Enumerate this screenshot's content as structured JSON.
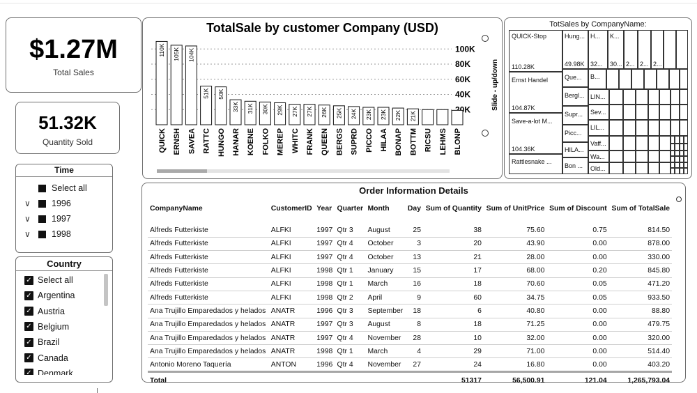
{
  "kpis": {
    "total_sales": {
      "value": "$1.27M",
      "label": "Total Sales"
    },
    "quantity_sold": {
      "value": "51.32K",
      "label": "Quantity Sold"
    }
  },
  "time_slicer": {
    "title": "Time",
    "items": [
      {
        "label": "Select all",
        "expandable": false
      },
      {
        "label": "1996",
        "expandable": true
      },
      {
        "label": "1997",
        "expandable": true
      },
      {
        "label": "1998",
        "expandable": true
      }
    ]
  },
  "country_slicer": {
    "title": "Country",
    "items": [
      "Select all",
      "Argentina",
      "Austria",
      "Belgium",
      "Brazil",
      "Canada",
      "Denmark"
    ]
  },
  "bar_chart": {
    "side_label": "Slide - up/down"
  },
  "chart_data": {
    "type": "bar",
    "title": "TotalSale by customer Company (USD)",
    "categories": [
      "QUICK",
      "ERNSH",
      "SAVEA",
      "RATTC",
      "HUNGO",
      "HANAR",
      "KOENE",
      "FOLKO",
      "MEREP",
      "WHITC",
      "FRANK",
      "QUEEN",
      "BERGS",
      "SUPRD",
      "PICCO",
      "HILAA",
      "BONAP",
      "BOTTM",
      "RICSU",
      "LEHMS",
      "BLONP"
    ],
    "values": [
      110,
      105,
      104,
      51,
      50,
      33,
      31,
      30,
      29,
      27,
      27,
      26,
      25,
      24,
      23,
      23,
      22,
      21,
      20,
      20,
      19
    ],
    "value_labels": [
      "110K",
      "105K",
      "104K",
      "51K",
      "50K",
      "33K",
      "31K",
      "30K",
      "29K",
      "27K",
      "27K",
      "26K",
      "25K",
      "24K",
      "23K",
      "23K",
      "22K",
      "21K",
      "",
      "",
      ""
    ],
    "y_ticks": [
      "20K",
      "40K",
      "60K",
      "80K",
      "100K"
    ],
    "ylim": [
      0,
      115
    ],
    "grid": true,
    "axis_position": "right"
  },
  "treemap": {
    "title": "TotSales by CompanyName:",
    "labels": [
      "QUICK-Stop",
      "110.28K",
      "Ernst Handel",
      "104.87K",
      "Save-a-lot M...",
      "104.36K",
      "Rattlesnake ...",
      "Hung...",
      "49.98K",
      "Que...",
      "Bergl...",
      "Supr...",
      "Picc...",
      "HILA...",
      "Bon ...",
      "H...",
      "32...",
      "K...",
      "30...",
      "2...",
      "2...",
      "2...",
      "B...",
      "LIN...",
      "Sev...",
      "LIL...",
      "Vaff...",
      "Wa...",
      "Old..."
    ]
  },
  "order_table": {
    "title": "Order Information Details",
    "columns": [
      "CompanyName",
      "CustomerID",
      "Year",
      "Quarter",
      "Month",
      "Day",
      "Sum of Quantity",
      "Sum of UnitPrice",
      "Sum of Discount",
      "Sum of TotalSale"
    ],
    "rows": [
      [
        "Alfreds Futterkiste",
        "ALFKI",
        "1997",
        "Qtr 3",
        "August",
        "25",
        "38",
        "75.60",
        "0.75",
        "814.50"
      ],
      [
        "Alfreds Futterkiste",
        "ALFKI",
        "1997",
        "Qtr 4",
        "October",
        "3",
        "20",
        "43.90",
        "0.00",
        "878.00"
      ],
      [
        "Alfreds Futterkiste",
        "ALFKI",
        "1997",
        "Qtr 4",
        "October",
        "13",
        "21",
        "28.00",
        "0.00",
        "330.00"
      ],
      [
        "Alfreds Futterkiste",
        "ALFKI",
        "1998",
        "Qtr 1",
        "January",
        "15",
        "17",
        "68.00",
        "0.20",
        "845.80"
      ],
      [
        "Alfreds Futterkiste",
        "ALFKI",
        "1998",
        "Qtr 1",
        "March",
        "16",
        "18",
        "70.60",
        "0.05",
        "471.20"
      ],
      [
        "Alfreds Futterkiste",
        "ALFKI",
        "1998",
        "Qtr 2",
        "April",
        "9",
        "60",
        "34.75",
        "0.05",
        "933.50"
      ],
      [
        "Ana Trujillo Emparedados y helados",
        "ANATR",
        "1996",
        "Qtr 3",
        "September",
        "18",
        "6",
        "40.80",
        "0.00",
        "88.80"
      ],
      [
        "Ana Trujillo Emparedados y helados",
        "ANATR",
        "1997",
        "Qtr 3",
        "August",
        "8",
        "18",
        "71.25",
        "0.00",
        "479.75"
      ],
      [
        "Ana Trujillo Emparedados y helados",
        "ANATR",
        "1997",
        "Qtr 4",
        "November",
        "28",
        "10",
        "32.00",
        "0.00",
        "320.00"
      ],
      [
        "Ana Trujillo Emparedados y helados",
        "ANATR",
        "1998",
        "Qtr 1",
        "March",
        "4",
        "29",
        "71.00",
        "0.00",
        "514.40"
      ],
      [
        "Antonio Moreno Taquería",
        "ANTON",
        "1996",
        "Qtr 4",
        "November",
        "27",
        "24",
        "16.80",
        "0.00",
        "403.20"
      ]
    ],
    "total": {
      "label": "Total",
      "quantity": "51317",
      "unit_price": "56,500.91",
      "discount": "121.04",
      "total_sale": "1,265,793.04"
    }
  }
}
